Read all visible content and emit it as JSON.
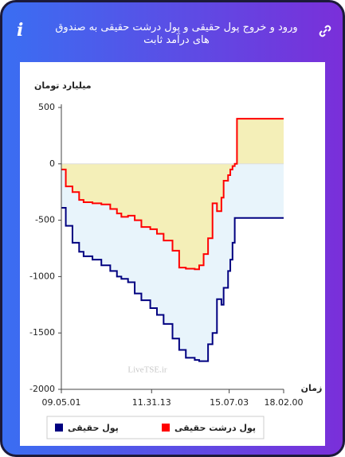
{
  "header": {
    "title": "ورود و خروج پول حقیقی و پول درشت حقیقی به صندوق های درآمد ثابت"
  },
  "chart_data": {
    "type": "line",
    "y_label": "میلیارد تومان",
    "x_label": "زمان",
    "watermark": "LiveTSE.ir",
    "x": [
      0,
      2,
      5,
      8,
      10,
      14,
      18,
      22,
      25,
      27,
      30,
      33,
      36,
      40,
      43,
      46,
      50,
      53,
      56,
      60,
      62,
      64,
      66,
      68,
      70,
      72,
      73,
      75,
      76,
      77,
      78,
      79,
      100
    ],
    "series": [
      {
        "name": "پول حقیقی",
        "color": "#000080",
        "fill": "#e8f4fb",
        "values": [
          -390,
          -550,
          -700,
          -780,
          -820,
          -850,
          -900,
          -950,
          -1000,
          -1020,
          -1050,
          -1150,
          -1210,
          -1280,
          -1340,
          -1420,
          -1550,
          -1650,
          -1720,
          -1740,
          -1750,
          -1750,
          -1600,
          -1500,
          -1200,
          -1250,
          -1100,
          -950,
          -850,
          -700,
          -480,
          -480,
          -480
        ]
      },
      {
        "name": "پول درشت حقیقی",
        "color": "#ff0000",
        "fill": "#f4efb8",
        "values": [
          -50,
          -200,
          -250,
          -320,
          -340,
          -350,
          -360,
          -400,
          -440,
          -470,
          -460,
          -500,
          -560,
          -580,
          -620,
          -680,
          -770,
          -920,
          -930,
          -935,
          -900,
          -800,
          -660,
          -350,
          -420,
          -300,
          -150,
          -100,
          -50,
          -20,
          0,
          400,
          400
        ]
      }
    ],
    "xlim": [
      0,
      100
    ],
    "xticks": [
      {
        "value": 0,
        "label": "09.05.01"
      },
      {
        "value": 40.6,
        "label": "11.31.13"
      },
      {
        "value": 75.5,
        "label": "15.07.03"
      },
      {
        "value": 100,
        "label": "18.02.00"
      }
    ],
    "ylim": [
      -2000,
      500
    ],
    "yticks": [
      500,
      0,
      -500,
      -1000,
      -1500,
      -2000
    ],
    "step": true
  }
}
